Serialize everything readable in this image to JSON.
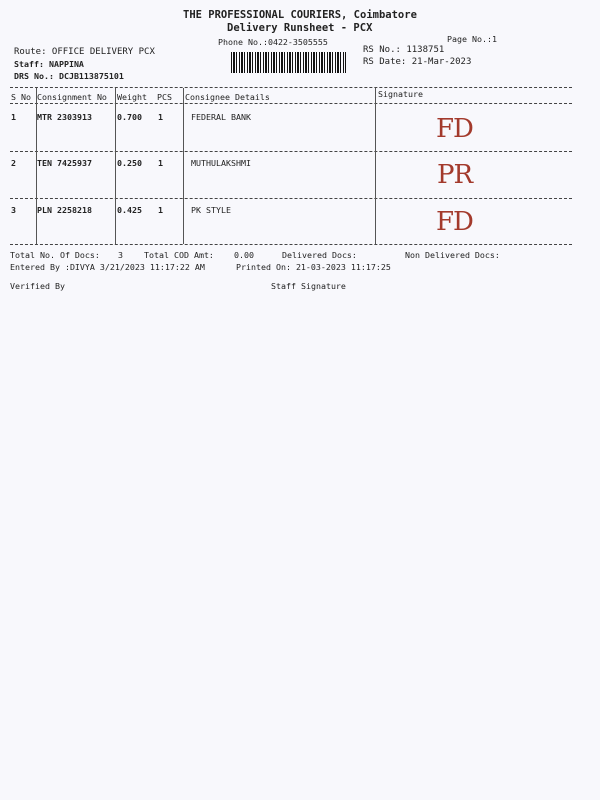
{
  "header": {
    "company": "THE PROFESSIONAL COURIERS, Coimbatore",
    "title": "Delivery Runsheet - PCX",
    "phone": "Phone No.:0422-3505555",
    "page_no": "Page No.:1",
    "route": "Route: OFFICE DELIVERY PCX",
    "staff": "Staff: NAPPINA",
    "drs_no": "DRS No.: DCJB113875101",
    "rs_no": "RS No.: 1138751",
    "rs_date": "RS Date: 21-Mar-2023"
  },
  "table": {
    "columns": [
      "S No",
      "Consignment No",
      "Weight",
      "PCS",
      "Consignee Details",
      "Signature"
    ],
    "rows": [
      {
        "sno": "1",
        "consignment": "MTR 2303913",
        "weight": "0.700",
        "pcs": "1",
        "consignee": "FEDERAL BANK",
        "signature": "FD"
      },
      {
        "sno": "2",
        "consignment": "TEN 7425937",
        "weight": "0.250",
        "pcs": "1",
        "consignee": "MUTHULAKSHMI",
        "signature": "PR"
      },
      {
        "sno": "3",
        "consignment": "PLN 2258218",
        "weight": "0.425",
        "pcs": "1",
        "consignee": "PK STYLE",
        "signature": "FD"
      }
    ]
  },
  "footer": {
    "total_docs_label": "Total No. Of Docs:",
    "total_docs": "3",
    "total_cod_label": "Total COD Amt:",
    "total_cod": "0.00",
    "delivered_label": "Delivered Docs:",
    "non_delivered_label": "Non Delivered Docs:",
    "entered_by": "Entered By :DIVYA 3/21/2023 11:17:22 AM",
    "printed_on": "Printed On: 21-03-2023 11:17:25",
    "verified_by": "Verified By",
    "staff_signature": "Staff Signature"
  },
  "colors": {
    "ink": "#222222",
    "signature_ink": "#a33a2c",
    "paper": "#f8f8fc"
  }
}
